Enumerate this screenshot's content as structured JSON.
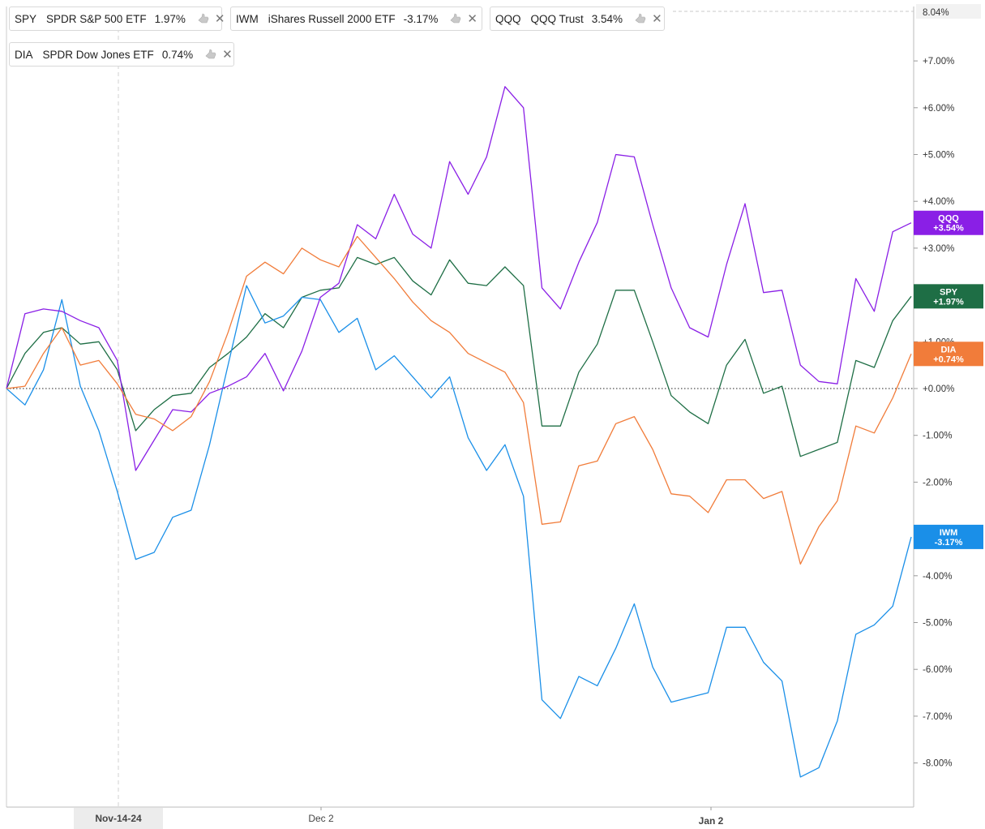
{
  "legend": [
    {
      "symbol": "SPY",
      "name": "SPDR S&P 500 ETF",
      "change": "1.97%",
      "color": "#1e6e45"
    },
    {
      "symbol": "IWM",
      "name": "iShares Russell 2000 ETF",
      "change": "-3.17%",
      "color": "#1a8fe8"
    },
    {
      "symbol": "QQQ",
      "name": "QQQ Trust",
      "change": "3.54%",
      "color": "#8a1fe6"
    },
    {
      "symbol": "DIA",
      "name": "SPDR Dow Jones ETF",
      "change": "0.74%",
      "color": "#f17c3a"
    }
  ],
  "chart_data": {
    "type": "line",
    "x_labels": [
      "Nov-14-24",
      "Dec 2",
      "Jan 2"
    ],
    "y_ticks": [
      "+7.00%",
      "+6.00%",
      "+5.00%",
      "+4.00%",
      "+3.00%",
      "+1.00%",
      "+0.00%",
      "-1.00%",
      "-2.00%",
      "-4.00%",
      "-5.00%",
      "-6.00%",
      "-7.00%",
      "-8.00%"
    ],
    "y_top_label": "8.04%",
    "ylim": [
      -8.9,
      8.04
    ],
    "grid": false,
    "series": [
      {
        "name": "SPY",
        "tag_label": "SPY",
        "tag_value": "+1.97%",
        "color": "#1e6e45",
        "values": [
          0,
          0.75,
          1.2,
          1.3,
          0.95,
          1.0,
          0.4,
          -0.9,
          -0.45,
          -0.15,
          -0.1,
          0.45,
          0.75,
          1.1,
          1.6,
          1.3,
          1.95,
          2.1,
          2.15,
          2.8,
          2.65,
          2.8,
          2.3,
          2.0,
          2.75,
          2.25,
          2.2,
          2.6,
          2.2,
          -0.8,
          -0.8,
          0.35,
          0.95,
          2.1,
          2.1,
          1.0,
          -0.15,
          -0.5,
          -0.75,
          0.5,
          1.05,
          -0.1,
          0.05,
          -1.45,
          -1.3,
          -1.15,
          0.6,
          0.45,
          1.45,
          1.97
        ]
      },
      {
        "name": "IWM",
        "tag_label": "IWM",
        "tag_value": "-3.17%",
        "color": "#1a8fe8",
        "values": [
          0,
          -0.35,
          0.4,
          1.9,
          0.05,
          -0.9,
          -2.2,
          -3.65,
          -3.5,
          -2.75,
          -2.6,
          -1.2,
          0.5,
          2.2,
          1.4,
          1.55,
          1.95,
          1.9,
          1.2,
          1.5,
          0.4,
          0.7,
          0.25,
          -0.2,
          0.25,
          -1.05,
          -1.75,
          -1.2,
          -2.3,
          -6.65,
          -7.05,
          -6.15,
          -6.35,
          -5.55,
          -4.6,
          -5.95,
          -6.7,
          -6.6,
          -6.5,
          -5.1,
          -5.1,
          -5.85,
          -6.25,
          -8.3,
          -8.1,
          -7.1,
          -5.25,
          -5.05,
          -4.65,
          -3.17
        ]
      },
      {
        "name": "QQQ",
        "tag_label": "QQQ",
        "tag_value": "+3.54%",
        "color": "#8a1fe6",
        "values": [
          0,
          1.6,
          1.7,
          1.65,
          1.45,
          1.3,
          0.6,
          -1.75,
          -1.1,
          -0.45,
          -0.5,
          -0.1,
          0.05,
          0.25,
          0.75,
          -0.05,
          0.8,
          1.95,
          2.25,
          3.5,
          3.2,
          4.15,
          3.3,
          3.0,
          4.85,
          4.15,
          4.95,
          6.45,
          6.0,
          2.15,
          1.7,
          2.7,
          3.55,
          5.0,
          4.95,
          3.5,
          2.15,
          1.3,
          1.1,
          2.65,
          3.95,
          2.05,
          2.1,
          0.5,
          0.15,
          0.1,
          2.35,
          1.65,
          3.35,
          3.54
        ]
      },
      {
        "name": "DIA",
        "tag_label": "DIA",
        "tag_value": "+0.74%",
        "color": "#f17c3a",
        "values": [
          0,
          0.05,
          0.75,
          1.3,
          0.5,
          0.6,
          0.1,
          -0.55,
          -0.65,
          -0.9,
          -0.6,
          0.15,
          1.2,
          2.4,
          2.7,
          2.45,
          3.0,
          2.75,
          2.6,
          3.25,
          2.8,
          2.35,
          1.85,
          1.45,
          1.2,
          0.75,
          0.55,
          0.35,
          -0.3,
          -2.9,
          -2.85,
          -1.65,
          -1.55,
          -0.75,
          -0.6,
          -1.3,
          -2.25,
          -2.3,
          -2.65,
          -1.95,
          -1.95,
          -2.35,
          -2.2,
          -3.75,
          -2.95,
          -2.4,
          -0.8,
          -0.95,
          -0.2,
          0.74
        ]
      }
    ]
  }
}
